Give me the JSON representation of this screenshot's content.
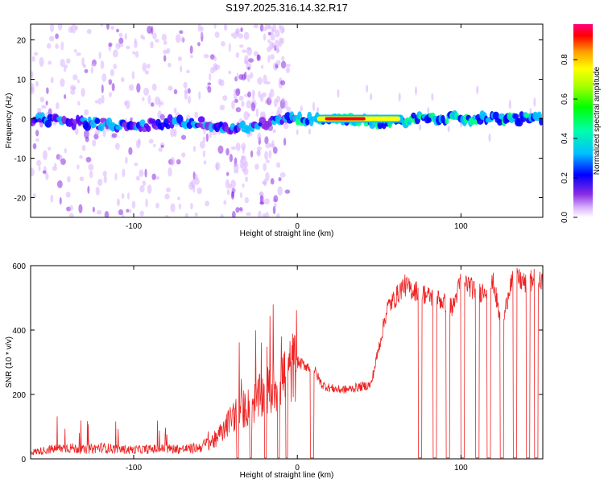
{
  "title": "S197.2025.316.14.32.R17",
  "spectrogram": {
    "type": "heatmap",
    "xlabel": "Height of straight line (km)",
    "ylabel": "Frequency (Hz)",
    "xlim": [
      -163,
      150
    ],
    "ylim": [
      -25,
      24
    ],
    "xticks": [
      -100,
      0,
      100
    ],
    "xtick_labels": [
      "-100",
      "0",
      "100"
    ],
    "yticks": [
      -20,
      -10,
      0,
      10,
      20
    ],
    "ytick_labels": [
      "-20",
      "-10",
      "0",
      "10",
      "20"
    ],
    "colorbar_label": "Normalized spectral amplitude",
    "colorbar_ticks": [
      0.0,
      0.2,
      0.4,
      0.6,
      0.8
    ],
    "colorbar_tick_labels": [
      "0.0",
      "0.2",
      "0.4",
      "0.6",
      "0.8"
    ],
    "colorbar_range": [
      0,
      0.98
    ],
    "colormap": [
      "#ffffff",
      "#d9b3ff",
      "#8a2be2",
      "#5500ff",
      "#0000ff",
      "#00bfff",
      "#00ff80",
      "#ffff00",
      "#ff8000",
      "#ff0000",
      "#ff0080"
    ],
    "ridge": {
      "x": [
        -163,
        -130,
        -100,
        -80,
        -60,
        -40,
        -10,
        0,
        10,
        30,
        60,
        70,
        100,
        150
      ],
      "freq": [
        0,
        -1,
        -2,
        -1,
        -1,
        -3,
        0,
        0,
        0,
        0,
        -1,
        0,
        0,
        0
      ]
    },
    "strong_segment": {
      "x_start": 10,
      "x_end": 65,
      "freq": 0
    }
  },
  "snr": {
    "type": "line",
    "xlabel": "Height of straight line (km)",
    "ylabel": "SNR (10 * v/v)",
    "xlim": [
      -163,
      150
    ],
    "ylim": [
      0,
      600
    ],
    "xticks": [
      -100,
      0,
      100
    ],
    "xtick_labels": [
      "-100",
      "0",
      "100"
    ],
    "yticks": [
      0,
      200,
      400,
      600
    ],
    "ytick_labels": [
      "0",
      "200",
      "400",
      "600"
    ],
    "color": "#ee2222",
    "x": [
      -163,
      -150,
      -140,
      -130,
      -120,
      -110,
      -100,
      -90,
      -80,
      -70,
      -60,
      -50,
      -45,
      -40,
      -35,
      -30,
      -25,
      -20,
      -15,
      -10,
      -5,
      0,
      5,
      10,
      15,
      20,
      25,
      30,
      35,
      40,
      45,
      50,
      55,
      60,
      65,
      70,
      75,
      80,
      85,
      90,
      95,
      100,
      105,
      110,
      115,
      120,
      125,
      130,
      135,
      140,
      145,
      150
    ],
    "y": [
      20,
      30,
      35,
      28,
      35,
      30,
      28,
      30,
      32,
      30,
      35,
      60,
      90,
      130,
      150,
      160,
      180,
      200,
      220,
      250,
      270,
      300,
      290,
      280,
      230,
      220,
      215,
      215,
      220,
      225,
      230,
      350,
      470,
      500,
      540,
      525,
      520,
      505,
      500,
      485,
      470,
      555,
      540,
      510,
      530,
      545,
      400,
      545,
      560,
      540,
      560,
      540
    ],
    "dropouts": [
      [
        -37,
        -36
      ],
      [
        -29,
        -28
      ],
      [
        -20,
        -19
      ],
      [
        -12,
        -11
      ],
      [
        -7,
        -6
      ],
      [
        8,
        10
      ],
      [
        74,
        76
      ],
      [
        83,
        85
      ],
      [
        91,
        93
      ],
      [
        100,
        102
      ],
      [
        109,
        111
      ],
      [
        116,
        118
      ],
      [
        124,
        126
      ],
      [
        132,
        134
      ],
      [
        140,
        142
      ],
      [
        145,
        147
      ]
    ]
  }
}
